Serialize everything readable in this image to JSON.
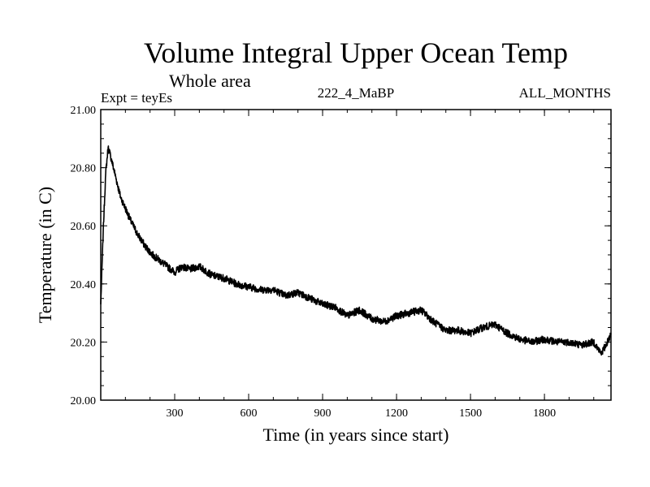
{
  "chart_data": {
    "type": "line",
    "title": "Volume Integral Upper Ocean Temp",
    "subtitle": "Whole area",
    "experiment": "Expt = teyEs",
    "run_id": "222_4_MaBP",
    "period": "ALL_MONTHS",
    "xlabel": "Time (in years since start)",
    "ylabel": "Temperature (in C)",
    "xlim": [
      0,
      2070
    ],
    "ylim": [
      20.0,
      21.0
    ],
    "xticks": [
      300,
      600,
      900,
      1200,
      1500,
      1800
    ],
    "xtick_labels": [
      "300",
      "600",
      "900",
      "1200",
      "1500",
      "1800"
    ],
    "yticks": [
      20.0,
      20.2,
      20.4,
      20.6,
      20.8,
      21.0
    ],
    "ytick_labels": [
      "20.00",
      "20.20",
      "20.40",
      "20.60",
      "20.80",
      "21.00"
    ],
    "grid": false,
    "series": [
      {
        "name": "Volume integral upper ocean temperature",
        "x": [
          0,
          10,
          20,
          30,
          40,
          60,
          80,
          100,
          120,
          150,
          180,
          210,
          240,
          270,
          300,
          330,
          360,
          400,
          450,
          500,
          550,
          600,
          650,
          700,
          750,
          800,
          850,
          900,
          950,
          1000,
          1050,
          1100,
          1150,
          1200,
          1250,
          1300,
          1350,
          1400,
          1450,
          1500,
          1550,
          1600,
          1650,
          1700,
          1750,
          1800,
          1850,
          1900,
          1950,
          2000,
          2030,
          2050,
          2070
        ],
        "y": [
          20.33,
          20.58,
          20.78,
          20.87,
          20.84,
          20.77,
          20.7,
          20.66,
          20.62,
          20.57,
          20.53,
          20.5,
          20.48,
          20.46,
          20.44,
          20.46,
          20.45,
          20.46,
          20.43,
          20.42,
          20.4,
          20.39,
          20.38,
          20.38,
          20.36,
          20.37,
          20.35,
          20.33,
          20.32,
          20.29,
          20.31,
          20.28,
          20.27,
          20.29,
          20.3,
          20.31,
          20.27,
          20.24,
          20.24,
          20.23,
          20.25,
          20.26,
          20.23,
          20.21,
          20.2,
          20.21,
          20.2,
          20.2,
          20.19,
          20.2,
          20.16,
          20.19,
          20.23
        ]
      }
    ]
  }
}
